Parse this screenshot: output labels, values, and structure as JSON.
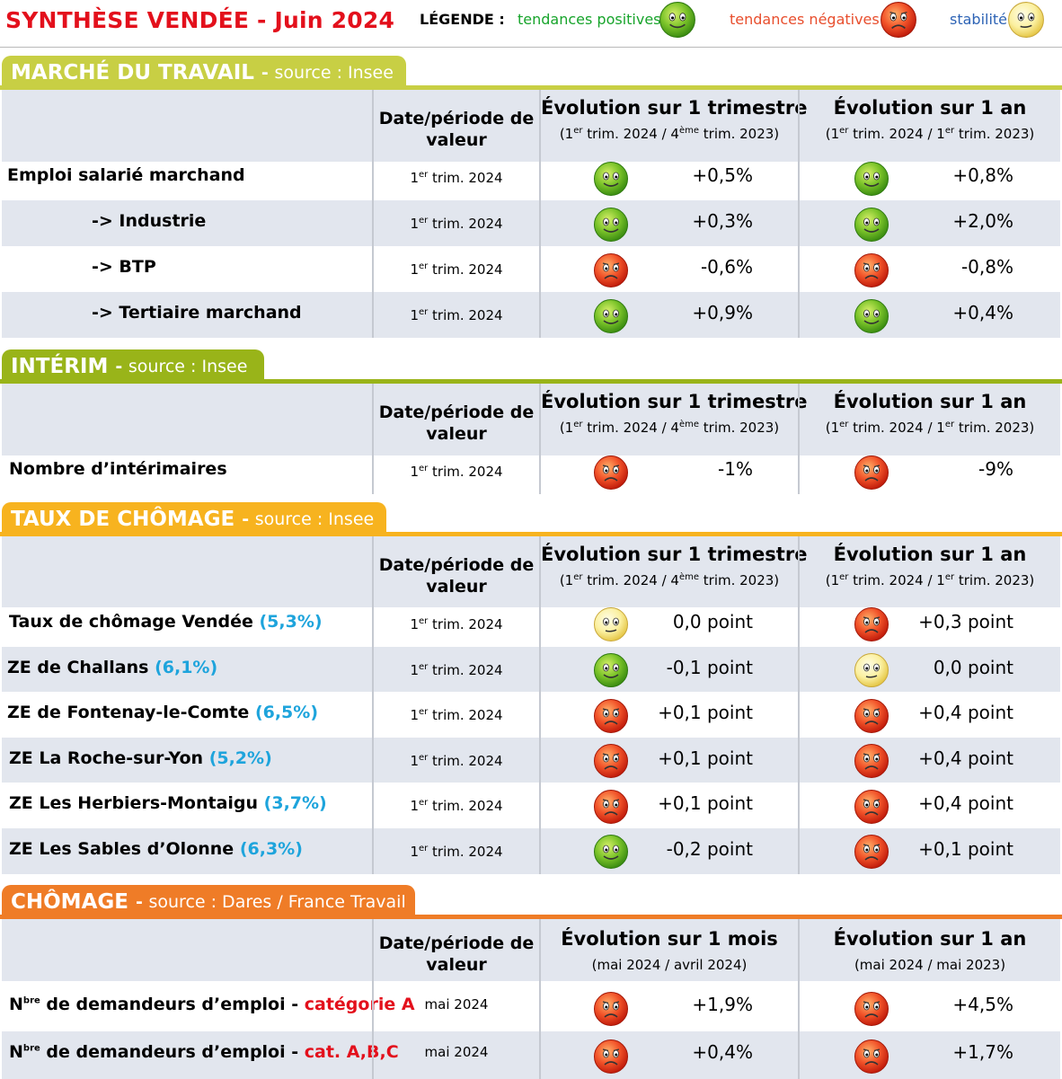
{
  "header": {
    "title": "SYNTHÈSE VENDÉE - Juin 2024",
    "legend_label": "LÉGENDE :",
    "legend_positive": "tendances positives",
    "legend_negative": "tendances négatives",
    "legend_stable": "stabilité"
  },
  "colors": {
    "title_red": "#e3101c",
    "positive_green": "#17a42b",
    "negative_orange": "#e84e2d",
    "stable_blue": "#2d63b5",
    "marche_tab": "#c8cf44",
    "interim_tab": "#99b419",
    "taux_tab": "#f7b31f",
    "chomage_tab": "#ef7c27",
    "row_shade": "#e2e6ee",
    "pct_blue": "#1ea4dc"
  },
  "icons": {
    "positive": "green-smiley-face-icon",
    "negative": "red-sad-face-icon",
    "stable": "yellow-neutral-face-icon"
  },
  "sections": {
    "marche": {
      "name": "MARCHÉ DU TRAVAIL",
      "source": "source : Insee",
      "col_date": "Date/période de valeur",
      "col_ev1": "Évolution sur 1 trimestre",
      "col_ev1_sub": "(1er trim. 2024 / 4ème trim. 2023)",
      "col_ev2": "Évolution sur 1 an",
      "col_ev2_sub": "(1er trim. 2024 / 1er trim. 2023)",
      "rows": [
        {
          "label": "Emploi salarié marchand",
          "date": "1er trim. 2024",
          "t1": "positive",
          "v1": "+0,5%",
          "t2": "positive",
          "v2": "+0,8%"
        },
        {
          "label": "-> Industrie",
          "date": "1er trim. 2024",
          "t1": "positive",
          "v1": "+0,3%",
          "t2": "positive",
          "v2": "+2,0%"
        },
        {
          "label": "-> BTP",
          "date": "1er trim. 2024",
          "t1": "negative",
          "v1": "-0,6%",
          "t2": "negative",
          "v2": "-0,8%"
        },
        {
          "label": "-> Tertiaire marchand",
          "date": "1er trim. 2024",
          "t1": "positive",
          "v1": "+0,9%",
          "t2": "positive",
          "v2": "+0,4%"
        }
      ]
    },
    "interim": {
      "name": "INTÉRIM",
      "source": "source : Insee",
      "col_date": "Date/période de valeur",
      "col_ev1": "Évolution sur 1 trimestre",
      "col_ev1_sub": "(1er trim. 2024 / 4ème trim. 2023)",
      "col_ev2": "Évolution sur 1 an",
      "col_ev2_sub": "(1er trim. 2024 / 1er trim. 2023)",
      "rows": [
        {
          "label": "Nombre d’intérimaires",
          "date": "1er trim. 2024",
          "t1": "negative",
          "v1": "-1%",
          "t2": "negative",
          "v2": "-9%"
        }
      ]
    },
    "taux": {
      "name": "TAUX DE CHÔMAGE",
      "source": "source : Insee",
      "col_date": "Date/période de valeur",
      "col_ev1": "Évolution sur 1 trimestre",
      "col_ev1_sub": "(1er trim. 2024 / 4ème trim. 2023)",
      "col_ev2": "Évolution sur 1 an",
      "col_ev2_sub": "(1er trim. 2024 / 1er trim. 2023)",
      "rows": [
        {
          "label": "Taux de chômage Vendée",
          "pct": "(5,3%)",
          "date": "1er trim. 2024",
          "t1": "stable",
          "v1": "0,0 point",
          "t2": "negative",
          "v2": "+0,3 point"
        },
        {
          "label": "ZE de Challans",
          "pct": "(6,1%)",
          "date": "1er trim. 2024",
          "t1": "positive",
          "v1": "-0,1 point",
          "t2": "stable",
          "v2": "0,0 point"
        },
        {
          "label": "ZE de Fontenay-le-Comte",
          "pct": "(6,5%)",
          "date": "1er trim. 2024",
          "t1": "negative",
          "v1": "+0,1 point",
          "t2": "negative",
          "v2": "+0,4 point"
        },
        {
          "label": "ZE La Roche-sur-Yon",
          "pct": "(5,2%)",
          "date": "1er trim. 2024",
          "t1": "negative",
          "v1": "+0,1 point",
          "t2": "negative",
          "v2": "+0,4 point"
        },
        {
          "label": "ZE Les Herbiers-Montaigu",
          "pct": "(3,7%)",
          "date": "1er trim. 2024",
          "t1": "negative",
          "v1": "+0,1 point",
          "t2": "negative",
          "v2": "+0,4 point"
        },
        {
          "label": "ZE Les Sables d’Olonne",
          "pct": "(6,3%)",
          "date": "1er trim. 2024",
          "t1": "positive",
          "v1": "-0,2 point",
          "t2": "negative",
          "v2": "+0,1 point"
        }
      ]
    },
    "chomage": {
      "name": "CHÔMAGE",
      "source": "source : Dares / France Travail",
      "col_date": "Date/période de valeur",
      "col_ev1": "Évolution sur 1 mois",
      "col_ev1_sub": "(mai 2024 / avril 2024)",
      "col_ev2": "Évolution sur 1 an",
      "col_ev2_sub": "(mai 2024 / mai 2023)",
      "rows": [
        {
          "label": "Nbre de demandeurs d’emploi -",
          "cat": "catégorie A",
          "date": "mai 2024",
          "t1": "negative",
          "v1": "+1,9%",
          "t2": "negative",
          "v2": "+4,5%"
        },
        {
          "label": "Nbre de demandeurs d’emploi -",
          "cat": "cat. A,B,C",
          "date": "mai 2024",
          "t1": "negative",
          "v1": "+0,4%",
          "t2": "negative",
          "v2": "+1,7%"
        }
      ]
    }
  }
}
